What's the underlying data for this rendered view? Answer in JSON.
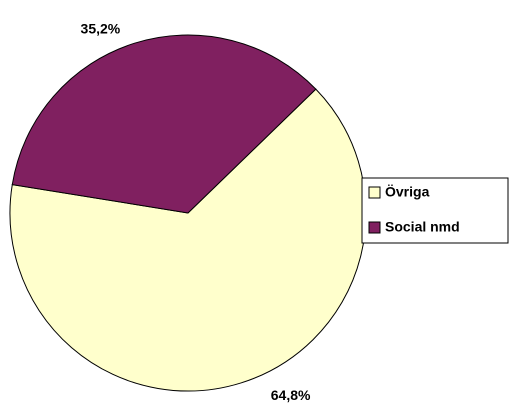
{
  "chart_data": {
    "type": "pie",
    "categories": [
      "Övriga",
      "Social nmd"
    ],
    "values": [
      64.8,
      35.2
    ],
    "value_labels": [
      "64,8%",
      "35,2%"
    ],
    "colors": [
      "#ffffcc",
      "#802060"
    ],
    "legend": "right"
  }
}
